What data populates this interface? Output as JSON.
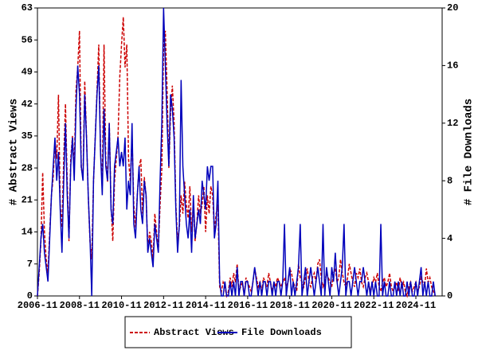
{
  "chart_data": {
    "type": "line",
    "y_label": "# Abstract Views",
    "y2_label": "# File Downloads",
    "x": [
      "2006-11",
      "2006-12",
      "2007-01",
      "2007-02",
      "2007-03",
      "2007-04",
      "2007-05",
      "2007-06",
      "2007-07",
      "2007-08",
      "2007-09",
      "2007-10",
      "2007-11",
      "2007-12",
      "2008-01",
      "2008-02",
      "2008-03",
      "2008-04",
      "2008-05",
      "2008-06",
      "2008-07",
      "2008-08",
      "2008-09",
      "2008-10",
      "2008-11",
      "2008-12",
      "2009-01",
      "2009-02",
      "2009-03",
      "2009-04",
      "2009-05",
      "2009-06",
      "2009-07",
      "2009-08",
      "2009-09",
      "2009-10",
      "2009-11",
      "2009-12",
      "2010-01",
      "2010-02",
      "2010-03",
      "2010-04",
      "2010-05",
      "2010-06",
      "2010-07",
      "2010-08",
      "2010-09",
      "2010-10",
      "2010-11",
      "2010-12",
      "2011-01",
      "2011-02",
      "2011-03",
      "2011-04",
      "2011-05",
      "2011-06",
      "2011-07",
      "2011-08",
      "2011-09",
      "2011-10",
      "2011-11",
      "2011-12",
      "2012-01",
      "2012-02",
      "2012-03",
      "2012-04",
      "2012-05",
      "2012-06",
      "2012-07",
      "2012-08",
      "2012-09",
      "2012-10",
      "2012-11",
      "2012-12",
      "2013-01",
      "2013-02",
      "2013-03",
      "2013-04",
      "2013-05",
      "2013-06",
      "2013-07",
      "2013-08",
      "2013-09",
      "2013-10",
      "2013-11",
      "2013-12",
      "2014-01",
      "2014-02",
      "2014-03",
      "2014-04",
      "2014-05",
      "2014-06",
      "2014-07",
      "2014-08",
      "2014-09",
      "2014-10",
      "2014-11",
      "2014-12",
      "2015-01",
      "2015-02",
      "2015-03",
      "2015-04",
      "2015-05",
      "2015-06",
      "2015-07",
      "2015-08",
      "2015-09",
      "2015-10",
      "2015-11",
      "2015-12",
      "2016-01",
      "2016-02",
      "2016-03",
      "2016-04",
      "2016-05",
      "2016-06",
      "2016-07",
      "2016-08",
      "2016-09",
      "2016-10",
      "2016-11",
      "2016-12",
      "2017-01",
      "2017-02",
      "2017-03",
      "2017-04",
      "2017-05",
      "2017-06",
      "2017-07",
      "2017-08",
      "2017-09",
      "2017-10",
      "2017-11",
      "2017-12",
      "2018-01",
      "2018-02",
      "2018-03",
      "2018-04",
      "2018-05",
      "2018-06",
      "2018-07",
      "2018-08",
      "2018-09",
      "2018-10",
      "2018-11",
      "2018-12",
      "2019-01",
      "2019-02",
      "2019-03",
      "2019-04",
      "2019-05",
      "2019-06",
      "2019-07",
      "2019-08",
      "2019-09",
      "2019-10",
      "2019-11",
      "2019-12",
      "2020-01",
      "2020-02",
      "2020-03",
      "2020-04",
      "2020-05",
      "2020-06",
      "2020-07",
      "2020-08",
      "2020-09",
      "2020-10",
      "2020-11",
      "2020-12",
      "2021-01",
      "2021-02",
      "2021-03",
      "2021-04",
      "2021-05",
      "2021-06",
      "2021-07",
      "2021-08",
      "2021-09",
      "2021-10",
      "2021-11",
      "2021-12",
      "2022-01",
      "2022-02",
      "2022-03",
      "2022-04",
      "2022-05",
      "2022-06",
      "2022-07",
      "2022-08",
      "2022-09",
      "2022-10",
      "2022-11",
      "2022-12",
      "2023-01",
      "2023-02",
      "2023-03",
      "2023-04",
      "2023-05",
      "2023-06",
      "2023-07",
      "2023-08",
      "2023-09",
      "2023-10",
      "2023-11",
      "2023-12",
      "2024-01",
      "2024-02",
      "2024-03",
      "2024-04",
      "2024-05",
      "2024-06",
      "2024-07",
      "2024-08",
      "2024-09",
      "2024-10",
      "2024-11",
      "2024-12",
      "2025-01",
      "2025-02",
      "2025-03",
      "2025-04",
      "2025-05",
      "2025-06",
      "2025-07",
      "2025-08",
      "2025-09",
      "2025-10"
    ],
    "xlim": [
      "2006-11",
      "2026-02"
    ],
    "xticks": [
      "2006-11",
      "2008-11",
      "2010-11",
      "2012-11",
      "2014-11",
      "2016-11",
      "2018-11",
      "2020-11",
      "2022-11",
      "2024-11"
    ],
    "ylim": [
      0,
      63
    ],
    "yticks": [
      0,
      7,
      14,
      21,
      28,
      35,
      42,
      49,
      56,
      63
    ],
    "y2lim": [
      0,
      20
    ],
    "y2ticks": [
      0,
      4,
      8,
      12,
      16,
      20
    ],
    "series": [
      {
        "name": "Abstract Views",
        "color": "#cc0000",
        "dashed": true,
        "values": [
          0,
          5,
          12,
          27,
          14,
          8,
          5,
          14,
          22,
          26,
          34,
          30,
          44,
          20,
          15,
          30,
          42,
          25,
          12,
          30,
          35,
          28,
          45,
          50,
          58,
          28,
          26,
          47,
          35,
          22,
          12,
          8,
          25,
          35,
          45,
          55,
          32,
          24,
          55,
          30,
          25,
          38,
          20,
          12,
          25,
          30,
          35,
          48,
          55,
          61,
          50,
          55,
          30,
          25,
          35,
          20,
          15,
          22,
          28,
          30,
          18,
          26,
          22,
          10,
          14,
          12,
          8,
          18,
          14,
          10,
          20,
          28,
          55,
          58,
          45,
          28,
          40,
          46,
          38,
          20,
          12,
          15,
          22,
          18,
          25,
          20,
          17,
          24,
          14,
          20,
          12,
          16,
          22,
          18,
          20,
          24,
          14,
          22,
          18,
          24,
          22,
          14,
          18,
          20,
          2,
          1,
          3,
          2,
          0,
          1,
          4,
          2,
          5,
          3,
          7,
          1,
          2,
          3,
          0,
          4,
          3,
          2,
          1,
          3,
          6,
          4,
          2,
          3,
          1,
          4,
          3,
          2,
          5,
          3,
          1,
          3,
          2,
          4,
          3,
          2,
          3,
          4,
          2,
          3,
          6,
          5,
          3,
          2,
          1,
          7,
          4,
          3,
          2,
          4,
          6,
          3,
          2,
          4,
          5,
          3,
          7,
          8,
          4,
          2,
          3,
          5,
          4,
          3,
          2,
          5,
          6,
          3,
          4,
          8,
          5,
          3,
          2,
          4,
          7,
          5,
          3,
          2,
          5,
          4,
          6,
          3,
          2,
          4,
          5,
          3,
          1,
          2,
          4,
          3,
          5,
          2,
          1,
          3,
          4,
          2,
          3,
          5,
          2,
          1,
          2,
          3,
          1,
          4,
          2,
          3,
          1,
          0,
          2,
          3,
          1,
          2,
          3,
          1,
          2,
          4,
          3,
          2,
          6,
          3,
          4,
          2,
          1,
          0
        ]
      },
      {
        "name": "File Downloads",
        "color": "#0000bb",
        "dashed": false,
        "axis": "y2",
        "values": [
          0,
          2,
          4,
          5,
          3,
          2,
          1,
          4,
          7,
          9,
          11,
          8,
          10,
          6,
          3,
          8,
          12,
          7,
          4,
          9,
          11,
          8,
          13,
          16,
          14,
          9,
          8,
          14,
          11,
          7,
          4,
          0,
          8,
          11,
          14,
          16,
          10,
          7,
          13,
          9,
          8,
          12,
          6,
          5,
          9,
          10,
          11,
          9,
          10,
          9,
          11,
          6,
          8,
          7,
          12,
          5,
          4,
          7,
          9,
          6,
          5,
          8,
          7,
          3,
          4,
          3,
          2,
          5,
          4,
          3,
          8,
          12,
          20,
          16,
          12,
          9,
          14,
          13,
          11,
          6,
          3,
          5,
          15,
          9,
          7,
          5,
          4,
          6,
          3,
          7,
          4,
          5,
          6,
          5,
          8,
          7,
          6,
          9,
          8,
          9,
          9,
          4,
          5,
          8,
          1,
          0,
          0,
          1,
          0,
          0,
          1,
          0,
          1,
          0,
          2,
          0,
          1,
          1,
          0,
          1,
          1,
          0,
          0,
          1,
          2,
          1,
          0,
          1,
          0,
          1,
          1,
          0,
          1,
          1,
          0,
          1,
          0,
          1,
          1,
          0,
          1,
          5,
          0,
          1,
          2,
          0,
          1,
          0,
          1,
          2,
          5,
          0,
          1,
          2,
          0,
          1,
          2,
          1,
          0,
          1,
          2,
          1,
          0,
          5,
          0,
          2,
          1,
          0,
          2,
          1,
          3,
          1,
          0,
          1,
          2,
          5,
          0,
          1,
          1,
          0,
          1,
          2,
          1,
          0,
          1,
          1,
          2,
          1,
          0,
          1,
          0,
          1,
          0,
          1,
          0,
          0,
          5,
          0,
          1,
          0,
          0,
          1,
          0,
          0,
          1,
          0,
          1,
          0,
          1,
          0,
          0,
          1,
          0,
          1,
          0,
          0,
          1,
          0,
          1,
          2,
          0,
          1,
          0,
          1,
          0,
          0,
          1,
          0
        ]
      }
    ]
  }
}
